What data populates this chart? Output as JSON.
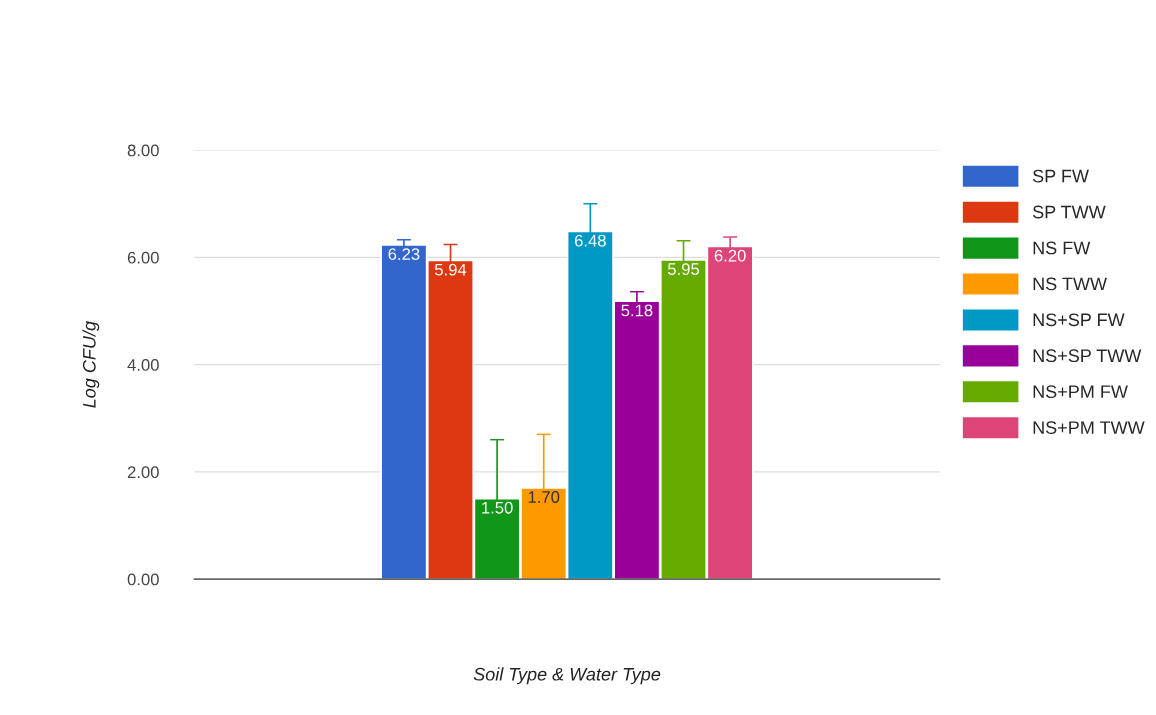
{
  "chart_data": {
    "type": "bar",
    "xlabel": "Soil Type & Water Type",
    "ylabel": "Log CFU/g",
    "categories": [
      null
    ],
    "series": [
      {
        "name": "SP FW",
        "color": "#3366cc",
        "values": [
          6.23
        ],
        "value_labels": [
          "6.23"
        ],
        "errors": [
          0.1
        ]
      },
      {
        "name": "SP TWW",
        "color": "#dc3912",
        "values": [
          5.94
        ],
        "value_labels": [
          "5.94"
        ],
        "errors": [
          0.3
        ]
      },
      {
        "name": "NS FW",
        "color": "#109618",
        "values": [
          1.5
        ],
        "value_labels": [
          "1.50"
        ],
        "errors": [
          1.1
        ]
      },
      {
        "name": "NS TWW",
        "color": "#ff9900",
        "values": [
          1.7
        ],
        "value_labels": [
          "1.70"
        ],
        "errors": [
          1.0
        ]
      },
      {
        "name": "NS+SP FW",
        "color": "#0099c6",
        "values": [
          6.48
        ],
        "value_labels": [
          "6.48"
        ],
        "errors": [
          0.52
        ]
      },
      {
        "name": "NS+SP TWW",
        "color": "#990099",
        "values": [
          5.18
        ],
        "value_labels": [
          "5.18"
        ],
        "errors": [
          0.18
        ]
      },
      {
        "name": "NS+PM FW",
        "color": "#66aa00",
        "values": [
          5.95
        ],
        "value_labels": [
          "5.95"
        ],
        "errors": [
          0.36
        ]
      },
      {
        "name": "NS+PM TWW",
        "color": "#dd4477",
        "values": [
          6.2
        ],
        "value_labels": [
          "6.20"
        ],
        "errors": [
          0.18
        ]
      }
    ],
    "ylim": [
      0,
      8
    ],
    "yticks": [
      {
        "value": 0,
        "label": "0.00"
      },
      {
        "value": 2,
        "label": "2.00"
      },
      {
        "value": 4,
        "label": "4.00"
      },
      {
        "value": 6,
        "label": "6.00"
      },
      {
        "value": 8,
        "label": "8.00"
      }
    ],
    "grid": "y",
    "legend": "right"
  }
}
